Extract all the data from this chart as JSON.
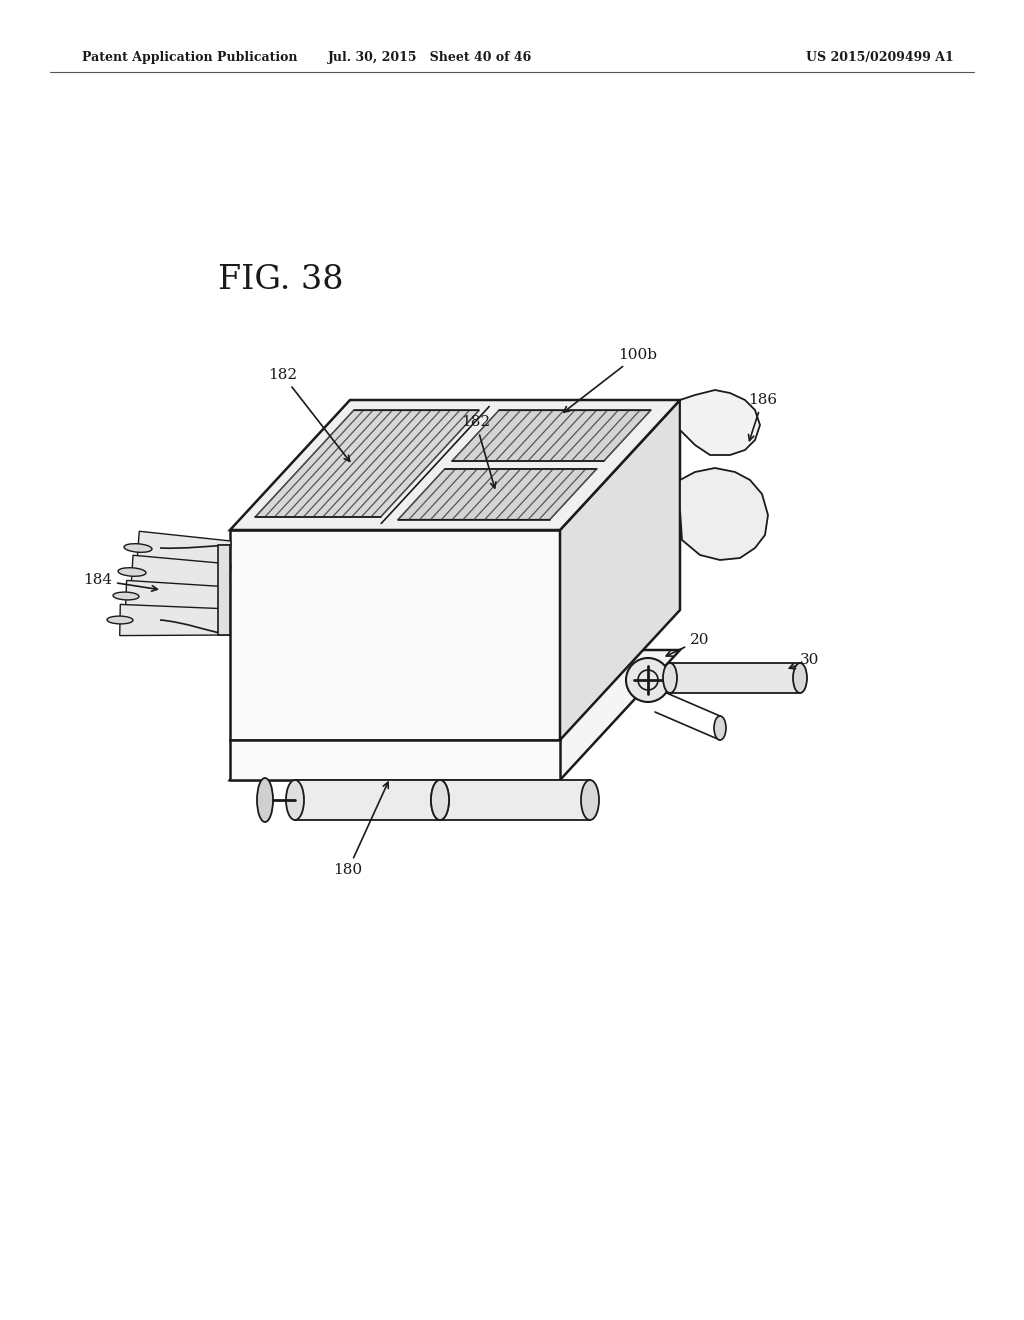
{
  "background_color": "#ffffff",
  "header_left": "Patent Application Publication",
  "header_mid": "Jul. 30, 2015   Sheet 40 of 46",
  "header_right": "US 2015/0209499 A1",
  "fig_label": "FIG. 38",
  "line_color": "#1a1a1a",
  "fill_light": "#f0f0f0",
  "fill_mid": "#e0e0e0",
  "fill_dark": "#c8c8c8",
  "fill_white": "#fafafa"
}
